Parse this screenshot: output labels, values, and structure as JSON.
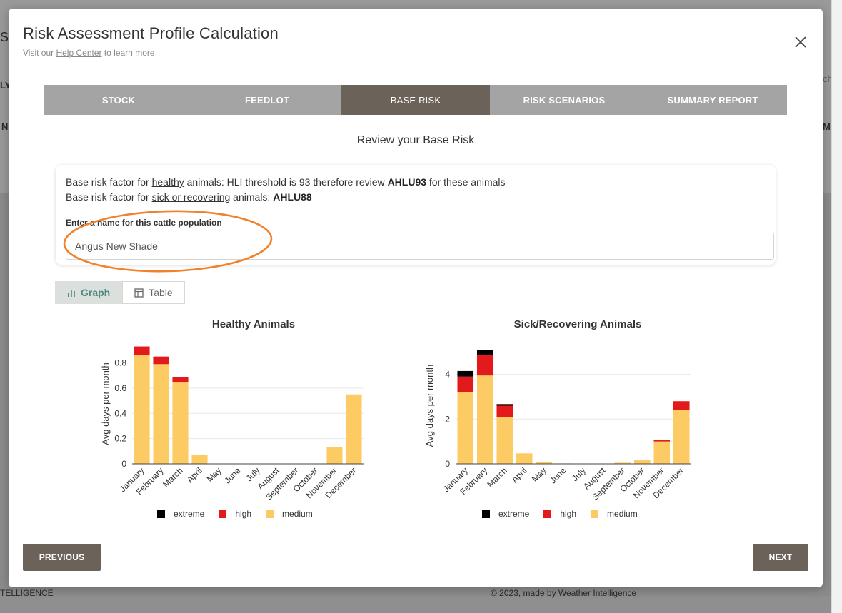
{
  "background": {
    "fragments": [
      "S",
      "LY",
      "N",
      "M",
      "ch"
    ],
    "footer_left": "TELLIGENCE",
    "footer_right": "© 2023, made by Weather Intelligence"
  },
  "modal": {
    "title": "Risk Assessment Profile Calculation",
    "subtitle_prefix": "Visit our ",
    "subtitle_link": "Help Center",
    "subtitle_suffix": " to learn more",
    "close_icon": "close-icon"
  },
  "tabs": [
    {
      "label": "STOCK",
      "active": false
    },
    {
      "label": "FEEDLOT",
      "active": false
    },
    {
      "label": "BASE RISK",
      "active": true
    },
    {
      "label": "RISK SCENARIOS",
      "active": false
    },
    {
      "label": "SUMMARY REPORT",
      "active": false
    }
  ],
  "review_title": "Review your Base Risk",
  "info": {
    "line1_prefix": "Base risk factor for ",
    "line1_underline": "healthy",
    "line1_mid": " animals: HLI threshold is 93 therefore review ",
    "line1_bold": "AHLU93",
    "line1_suffix": " for these animals",
    "line2_prefix": "Base risk factor for ",
    "line2_underline": "sick or recovering",
    "line2_mid": " animals: ",
    "line2_bold": "AHLU88"
  },
  "name_field": {
    "label": "Enter a name for this cattle population",
    "value": "Angus New Shade",
    "highlight_color": "#f0822d"
  },
  "view_toggle": {
    "graph_label": "Graph",
    "table_label": "Table",
    "active": "graph",
    "graph_icon": "bar-chart-icon",
    "table_icon": "table-icon"
  },
  "colors": {
    "extreme": "#000000",
    "high": "#e31a1c",
    "medium": "#fdcb63",
    "button": "#6b625a",
    "active_tab": "#6b625a",
    "tab_bar": "#a4a4a4"
  },
  "chart_data": [
    {
      "type": "bar",
      "stacked": true,
      "title": "Healthy Animals",
      "ylabel": "Avg days per month",
      "ylim": [
        0,
        0.95
      ],
      "yticks": [
        0,
        0.2,
        0.4,
        0.6,
        0.8
      ],
      "ytick_labels": [
        "0",
        "0.2",
        "0.4",
        "0.6",
        "0.8"
      ],
      "categories": [
        "January",
        "February",
        "March",
        "April",
        "May",
        "June",
        "July",
        "August",
        "September",
        "October",
        "November",
        "December"
      ],
      "series": [
        {
          "name": "medium",
          "values": [
            0.86,
            0.79,
            0.65,
            0.07,
            0,
            0,
            0,
            0,
            0,
            0,
            0.13,
            0.55
          ]
        },
        {
          "name": "high",
          "values": [
            0.07,
            0.06,
            0.04,
            0,
            0,
            0,
            0,
            0,
            0,
            0,
            0,
            0
          ]
        },
        {
          "name": "extreme",
          "values": [
            0,
            0,
            0,
            0,
            0,
            0,
            0,
            0,
            0,
            0,
            0,
            0
          ]
        }
      ],
      "legend": [
        "extreme",
        "high",
        "medium"
      ],
      "grid": true
    },
    {
      "type": "bar",
      "stacked": true,
      "title": "Sick/Recovering Animals",
      "ylabel": "Avg days per month",
      "ylim": [
        0,
        5.2
      ],
      "yticks": [
        0,
        2,
        4
      ],
      "ytick_labels": [
        "0",
        "2",
        "4"
      ],
      "categories": [
        "January",
        "February",
        "March",
        "April",
        "May",
        "June",
        "July",
        "August",
        "September",
        "October",
        "November",
        "December"
      ],
      "series": [
        {
          "name": "medium",
          "values": [
            3.2,
            3.95,
            2.1,
            0.47,
            0.08,
            0.02,
            0.01,
            0.01,
            0.05,
            0.16,
            1.0,
            2.42
          ]
        },
        {
          "name": "high",
          "values": [
            0.7,
            0.9,
            0.5,
            0,
            0,
            0,
            0,
            0,
            0,
            0,
            0.06,
            0.38
          ]
        },
        {
          "name": "extreme",
          "values": [
            0.25,
            0.25,
            0.07,
            0,
            0,
            0,
            0,
            0,
            0,
            0,
            0,
            0
          ]
        }
      ],
      "legend": [
        "extreme",
        "high",
        "medium"
      ],
      "grid": true
    }
  ],
  "footer": {
    "previous_label": "PREVIOUS",
    "next_label": "NEXT"
  }
}
